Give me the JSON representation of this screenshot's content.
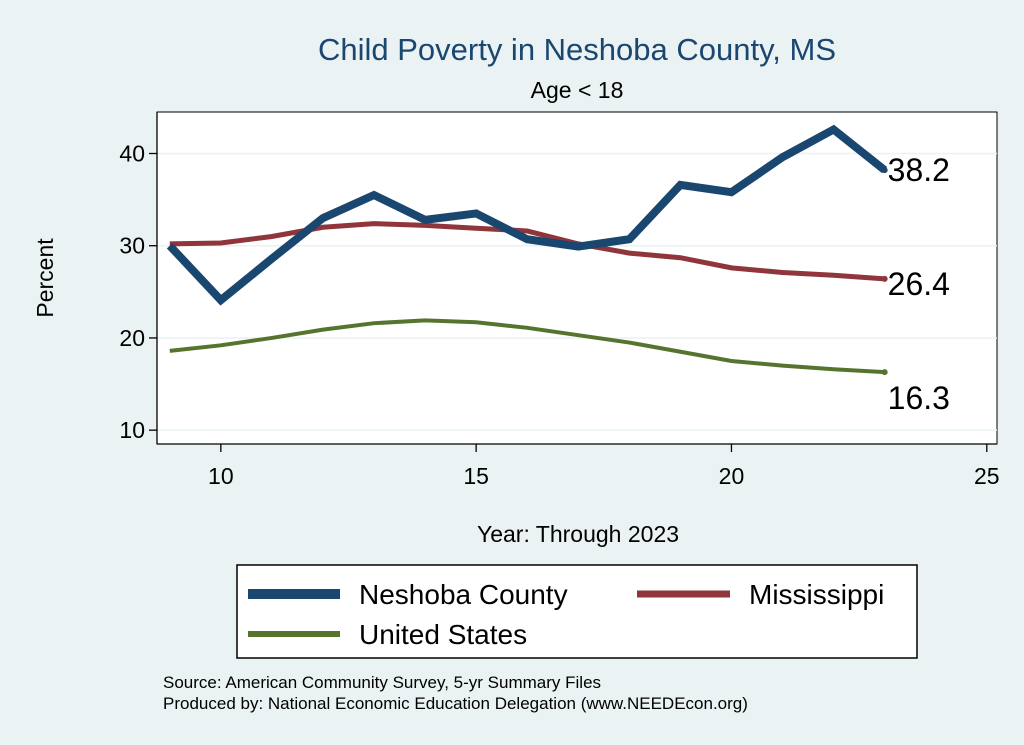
{
  "chart_data": {
    "type": "line",
    "title": "Child Poverty in Neshoba County, MS",
    "subtitle": "Age < 18",
    "xlabel": "Year: Through 2023",
    "ylabel": "Percent",
    "xlim": [
      8.75,
      25.2
    ],
    "ylim": [
      8.5,
      44.5
    ],
    "xticks": [
      10,
      15,
      20,
      25
    ],
    "yticks": [
      10,
      20,
      30,
      40
    ],
    "grid": true,
    "legend_position": "bottom",
    "x": [
      9,
      10,
      11,
      12,
      13,
      14,
      15,
      16,
      17,
      18,
      19,
      20,
      21,
      22,
      23
    ],
    "series": [
      {
        "name": "Neshoba County",
        "color": "#1a476f",
        "values": [
          30.0,
          24.1,
          28.6,
          33.0,
          35.5,
          32.8,
          33.5,
          30.7,
          29.9,
          30.7,
          36.6,
          35.8,
          39.6,
          42.6,
          38.2
        ],
        "end_label": "38.2"
      },
      {
        "name": "Mississippi",
        "color": "#90353b",
        "values": [
          30.2,
          30.3,
          31.0,
          32.0,
          32.4,
          32.2,
          31.9,
          31.6,
          30.2,
          29.2,
          28.7,
          27.6,
          27.1,
          26.8,
          26.4
        ],
        "end_label": "26.4"
      },
      {
        "name": "United States",
        "color": "#55752f",
        "values": [
          18.6,
          19.2,
          20.0,
          20.9,
          21.6,
          21.9,
          21.7,
          21.1,
          20.3,
          19.5,
          18.5,
          17.5,
          17.0,
          16.6,
          16.3
        ],
        "end_label": "16.3"
      }
    ]
  },
  "notes": {
    "source": "Source: American Community Survey, 5-yr Summary Files",
    "produced_by": "Produced by: National Economic Education Delegation (www.NEEDEcon.org)"
  }
}
